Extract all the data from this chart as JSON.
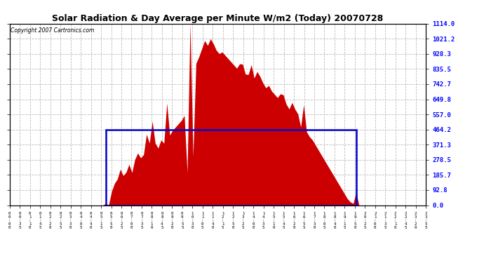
{
  "title": "Solar Radiation & Day Average per Minute W/m2 (Today) 20070728",
  "copyright": "Copyright 2007 Cartronics.com",
  "background_color": "#ffffff",
  "bar_color": "#cc0000",
  "line_color": "#0000cc",
  "grid_color": "#bbbbbb",
  "ytick_labels": [
    "0.0",
    "92.8",
    "185.7",
    "278.5",
    "371.3",
    "464.2",
    "557.0",
    "649.8",
    "742.7",
    "835.5",
    "928.3",
    "1021.2",
    "1114.0"
  ],
  "ytick_values": [
    0.0,
    92.8,
    185.7,
    278.5,
    371.3,
    464.2,
    557.0,
    649.8,
    742.7,
    835.5,
    928.3,
    1021.2,
    1114.0
  ],
  "ylim": [
    0,
    1114.0
  ],
  "day_average": 464.2,
  "n_points": 144,
  "sunrise_idx": 33,
  "sunset_idx": 119,
  "xtick_labels": [
    "00:00",
    "00:35",
    "01:10",
    "01:45",
    "02:20",
    "02:55",
    "03:30",
    "04:05",
    "04:40",
    "05:15",
    "05:50",
    "06:25",
    "07:00",
    "07:35",
    "08:10",
    "08:45",
    "09:20",
    "09:55",
    "10:30",
    "11:05",
    "11:40",
    "12:15",
    "12:50",
    "13:25",
    "14:00",
    "14:35",
    "15:10",
    "15:45",
    "16:20",
    "16:55",
    "17:30",
    "18:05",
    "18:40",
    "19:15",
    "19:50",
    "20:25",
    "21:00",
    "21:35",
    "22:10",
    "22:45",
    "23:20",
    "23:55"
  ],
  "figwidth": 6.9,
  "figheight": 3.75,
  "dpi": 100
}
